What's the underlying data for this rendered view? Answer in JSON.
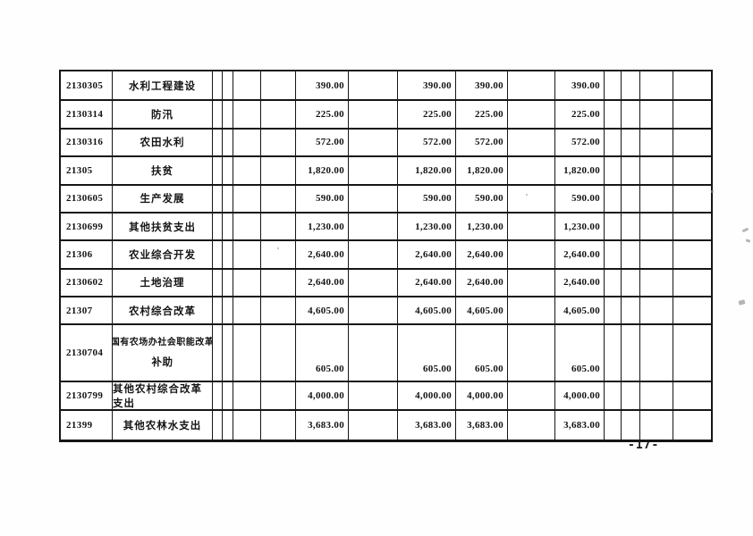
{
  "document": {
    "page_number": "-17-",
    "table": {
      "rows": [
        {
          "code": "2130305",
          "name": "水利工程建设",
          "v1": "390.00",
          "v2": "390.00",
          "v3": "390.00",
          "v4": "390.00"
        },
        {
          "code": "2130314",
          "name": "防汛",
          "v1": "225.00",
          "v2": "225.00",
          "v3": "225.00",
          "v4": "225.00"
        },
        {
          "code": "2130316",
          "name": "农田水利",
          "v1": "572.00",
          "v2": "572.00",
          "v3": "572.00",
          "v4": "572.00"
        },
        {
          "code": "21305",
          "name": "扶贫",
          "v1": "1,820.00",
          "v2": "1,820.00",
          "v3": "1,820.00",
          "v4": "1,820.00"
        },
        {
          "code": "2130605",
          "name": "生产发展",
          "v1": "590.00",
          "v2": "590.00",
          "v3": "590.00",
          "v4": "590.00"
        },
        {
          "code": "2130699",
          "name": "其他扶贫支出",
          "v1": "1,230.00",
          "v2": "1,230.00",
          "v3": "1,230.00",
          "v4": "1,230.00"
        },
        {
          "code": "21306",
          "name": "农业综合开发",
          "v1": "2,640.00",
          "v2": "2,640.00",
          "v3": "2,640.00",
          "v4": "2,640.00"
        },
        {
          "code": "2130602",
          "name": "土地治理",
          "v1": "2,640.00",
          "v2": "2,640.00",
          "v3": "2,640.00",
          "v4": "2,640.00"
        },
        {
          "code": "21307",
          "name": "农村综合改革",
          "v1": "4,605.00",
          "v2": "4,605.00",
          "v3": "4,605.00",
          "v4": "4,605.00"
        },
        {
          "code": "2130704",
          "tall": true,
          "name_line1": "国有农场办社会职能改革",
          "name_line2": "补助",
          "v1": "605.00",
          "v2": "605.00",
          "v3": "605.00",
          "v4": "605.00"
        },
        {
          "code": "2130799",
          "name": "其他农村综合改革支出",
          "v1": "4,000.00",
          "v2": "4,000.00",
          "v3": "4,000.00",
          "v4": "4,000.00"
        },
        {
          "code": "21399",
          "name": "其他农林水支出",
          "v1": "3,683.00",
          "v2": "3,683.00",
          "v3": "3,683.00",
          "v4": "3,683.00"
        }
      ]
    }
  }
}
